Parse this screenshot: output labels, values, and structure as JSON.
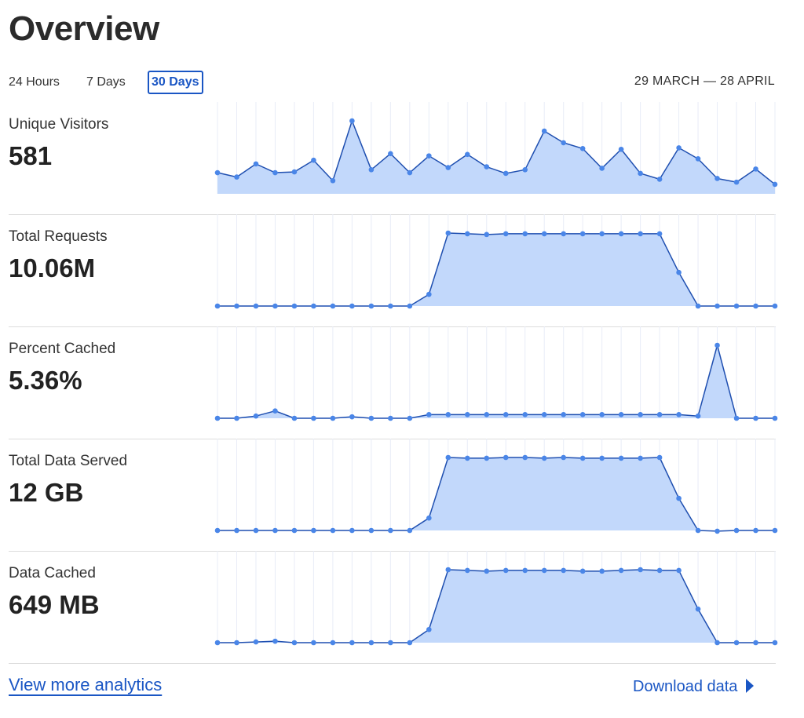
{
  "page": {
    "title": "Overview"
  },
  "range_tabs": [
    {
      "label": "24 Hours",
      "active": false
    },
    {
      "label": "7 Days",
      "active": false
    },
    {
      "label": "30 Days",
      "active": true
    }
  ],
  "date_range": "29 MARCH — 28 APRIL",
  "metrics": [
    {
      "label": "Unique Visitors",
      "value": "581"
    },
    {
      "label": "Total Requests",
      "value": "10.06M"
    },
    {
      "label": "Percent Cached",
      "value": "5.36%"
    },
    {
      "label": "Total Data Served",
      "value": "12 GB"
    },
    {
      "label": "Data Cached",
      "value": "649 MB"
    }
  ],
  "footer": {
    "view_more_label": "View more analytics",
    "download_label": "Download data"
  },
  "colors": {
    "accent": "#1a56c4",
    "line": "#1f4fb0",
    "point": "#4a86e8",
    "fill": "#c2d8fb",
    "grid": "#e8ecf7"
  },
  "chart_data": [
    {
      "type": "area",
      "series_label": "Unique Visitors",
      "x": [
        1,
        2,
        3,
        4,
        5,
        6,
        7,
        8,
        9,
        10,
        11,
        12,
        13,
        14,
        15,
        16,
        17,
        18,
        19,
        20,
        21,
        22,
        23,
        24,
        25,
        26,
        27,
        28,
        29,
        30
      ],
      "y": [
        0.29,
        0.23,
        0.41,
        0.29,
        0.3,
        0.46,
        0.18,
        1.0,
        0.33,
        0.55,
        0.29,
        0.52,
        0.36,
        0.54,
        0.37,
        0.28,
        0.33,
        0.86,
        0.7,
        0.62,
        0.35,
        0.61,
        0.28,
        0.2,
        0.63,
        0.48,
        0.21,
        0.16,
        0.34,
        0.13
      ]
    },
    {
      "type": "area",
      "series_label": "Total Requests",
      "x": [
        1,
        2,
        3,
        4,
        5,
        6,
        7,
        8,
        9,
        10,
        11,
        12,
        13,
        14,
        15,
        16,
        17,
        18,
        19,
        20,
        21,
        22,
        23,
        24,
        25,
        26,
        27,
        28,
        29,
        30
      ],
      "y": [
        0,
        0,
        0,
        0,
        0,
        0,
        0,
        0,
        0,
        0,
        0,
        0.16,
        1.0,
        0.99,
        0.98,
        0.99,
        0.99,
        0.99,
        0.99,
        0.99,
        0.99,
        0.99,
        0.99,
        0.99,
        0.46,
        0,
        0,
        0,
        0,
        0
      ]
    },
    {
      "type": "area",
      "series_label": "Percent Cached",
      "x": [
        1,
        2,
        3,
        4,
        5,
        6,
        7,
        8,
        9,
        10,
        11,
        12,
        13,
        14,
        15,
        16,
        17,
        18,
        19,
        20,
        21,
        22,
        23,
        24,
        25,
        26,
        27,
        28,
        29,
        30
      ],
      "y": [
        0,
        0,
        0.03,
        0.1,
        0,
        0,
        0,
        0.02,
        0,
        0,
        0,
        0.05,
        0.05,
        0.05,
        0.05,
        0.05,
        0.05,
        0.05,
        0.05,
        0.05,
        0.05,
        0.05,
        0.05,
        0.05,
        0.05,
        0.03,
        1.0,
        0,
        0,
        0
      ]
    },
    {
      "type": "area",
      "series_label": "Total Data Served",
      "x": [
        1,
        2,
        3,
        4,
        5,
        6,
        7,
        8,
        9,
        10,
        11,
        12,
        13,
        14,
        15,
        16,
        17,
        18,
        19,
        20,
        21,
        22,
        23,
        24,
        25,
        26,
        27,
        28,
        29,
        30
      ],
      "y": [
        0,
        0,
        0,
        0,
        0,
        0,
        0,
        0,
        0,
        0,
        0,
        0.17,
        1.0,
        0.99,
        0.99,
        1.0,
        1.0,
        0.99,
        1.0,
        0.99,
        0.99,
        0.99,
        0.99,
        1.0,
        0.44,
        0,
        -0.01,
        0,
        0,
        0
      ]
    },
    {
      "type": "area",
      "series_label": "Data Cached",
      "x": [
        1,
        2,
        3,
        4,
        5,
        6,
        7,
        8,
        9,
        10,
        11,
        12,
        13,
        14,
        15,
        16,
        17,
        18,
        19,
        20,
        21,
        22,
        23,
        24,
        25,
        26,
        27,
        28,
        29,
        30
      ],
      "y": [
        0,
        0,
        0.01,
        0.02,
        0,
        0,
        0,
        0,
        0,
        0,
        0,
        0.18,
        1.0,
        0.99,
        0.98,
        0.99,
        0.99,
        0.99,
        0.99,
        0.98,
        0.98,
        0.99,
        1.0,
        0.99,
        0.99,
        0.46,
        0,
        0,
        0,
        0
      ]
    }
  ]
}
